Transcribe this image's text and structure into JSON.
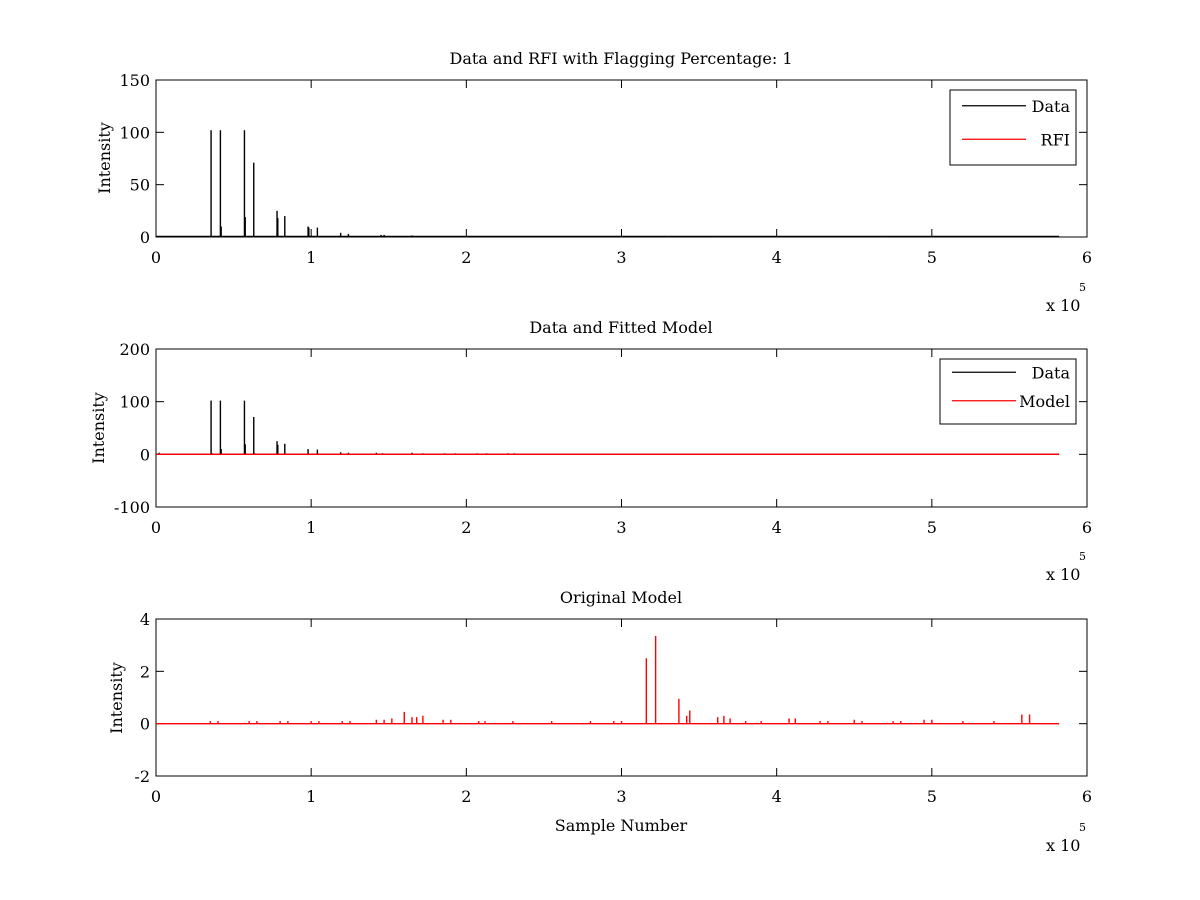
{
  "chart_data": [
    {
      "type": "line",
      "title": "Data and RFI with Flagging Percentage: 1",
      "xlabel": "",
      "ylabel": "Intensity",
      "xlim": [
        0,
        6
      ],
      "ylim": [
        0,
        150
      ],
      "xticks": [
        "0",
        "1",
        "2",
        "3",
        "4",
        "5",
        "6"
      ],
      "yticks": [
        "0",
        "50",
        "100",
        "150"
      ],
      "x_multiplier": "x 10",
      "x_multiplier_exponent": "5",
      "legend": {
        "position": "top-right",
        "entries": [
          "Data",
          "RFI"
        ]
      },
      "series": [
        {
          "name": "Data",
          "color": "#000000",
          "baseline": 0.6,
          "x": [
            0.355,
            0.362,
            0.415,
            0.42,
            0.57,
            0.575,
            0.63,
            0.635,
            0.78,
            0.785,
            0.83,
            0.835,
            0.98,
            0.985,
            1.04,
            1.045,
            1.19,
            1.24,
            1.45,
            1.47,
            1.65
          ],
          "y": [
            102,
            1,
            102,
            10,
            102,
            19,
            71,
            1,
            25,
            18,
            20,
            1,
            10,
            9,
            9,
            1,
            4,
            3,
            2,
            2,
            1.5
          ]
        },
        {
          "name": "RFI",
          "color": "#ff0000",
          "baseline": 0.3,
          "x": [
            3.3,
            3.6,
            4.7
          ],
          "y": [
            0.6,
            0.5,
            0.5
          ]
        }
      ],
      "x_end": 5.82
    },
    {
      "type": "line",
      "title": "Data and Fitted Model",
      "xlabel": "",
      "ylabel": "Intensity",
      "xlim": [
        0,
        6
      ],
      "ylim": [
        -100,
        200
      ],
      "xticks": [
        "0",
        "1",
        "2",
        "3",
        "4",
        "5",
        "6"
      ],
      "yticks": [
        "-100",
        "0",
        "100",
        "200"
      ],
      "x_multiplier": "x 10",
      "x_multiplier_exponent": "5",
      "legend": {
        "position": "top-right",
        "entries": [
          "Data",
          "Model"
        ]
      },
      "series": [
        {
          "name": "Data",
          "color": "#000000",
          "baseline": 0,
          "x": [
            0.02,
            0.355,
            0.362,
            0.415,
            0.42,
            0.57,
            0.575,
            0.63,
            0.635,
            0.78,
            0.785,
            0.83,
            0.98,
            1.04,
            1.19,
            1.24,
            1.42,
            1.46,
            1.65,
            1.72,
            1.86,
            1.93,
            2.07,
            2.13,
            2.27,
            2.31,
            3.37
          ],
          "y": [
            3,
            102,
            2,
            102,
            10,
            102,
            19,
            71,
            2,
            25,
            18,
            20,
            10,
            9,
            4,
            3,
            3,
            2,
            3,
            2,
            2,
            2,
            2,
            2,
            2,
            2,
            1
          ]
        },
        {
          "name": "Model",
          "color": "#ff0000",
          "baseline": 0,
          "x": [],
          "y": []
        }
      ],
      "x_end": 5.82
    },
    {
      "type": "line",
      "title": "Original Model",
      "xlabel": "Sample Number",
      "ylabel": "Intensity",
      "xlim": [
        0,
        6
      ],
      "ylim": [
        -2,
        4
      ],
      "xticks": [
        "0",
        "1",
        "2",
        "3",
        "4",
        "5",
        "6"
      ],
      "yticks": [
        "-2",
        "0",
        "2",
        "4"
      ],
      "x_multiplier": "x 10",
      "x_multiplier_exponent": "5",
      "legend": null,
      "series": [
        {
          "name": "Model",
          "color": "#ff0000",
          "baseline": 0,
          "x": [
            0.35,
            0.4,
            0.6,
            0.65,
            0.8,
            0.85,
            1.0,
            1.05,
            1.2,
            1.25,
            1.42,
            1.47,
            1.52,
            1.6,
            1.65,
            1.68,
            1.72,
            1.85,
            1.9,
            2.08,
            2.12,
            2.3,
            2.55,
            2.8,
            2.95,
            3.0,
            3.16,
            3.22,
            3.37,
            3.42,
            3.44,
            3.62,
            3.66,
            3.7,
            3.8,
            3.9,
            4.08,
            4.12,
            4.28,
            4.33,
            4.5,
            4.55,
            4.75,
            4.8,
            4.95,
            5.0,
            5.2,
            5.4,
            5.58,
            5.63
          ],
          "y": [
            0.1,
            0.1,
            0.1,
            0.1,
            0.1,
            0.1,
            0.1,
            0.1,
            0.1,
            0.1,
            0.15,
            0.15,
            0.2,
            0.45,
            0.25,
            0.25,
            0.3,
            0.15,
            0.15,
            0.1,
            0.1,
            0.1,
            0.1,
            0.1,
            0.1,
            0.1,
            2.5,
            3.35,
            0.95,
            0.3,
            0.5,
            0.25,
            0.3,
            0.2,
            0.1,
            0.1,
            0.2,
            0.2,
            0.1,
            0.1,
            0.15,
            0.1,
            0.1,
            0.1,
            0.15,
            0.15,
            0.1,
            0.1,
            0.35,
            0.35
          ]
        }
      ],
      "x_end": 5.82
    }
  ]
}
